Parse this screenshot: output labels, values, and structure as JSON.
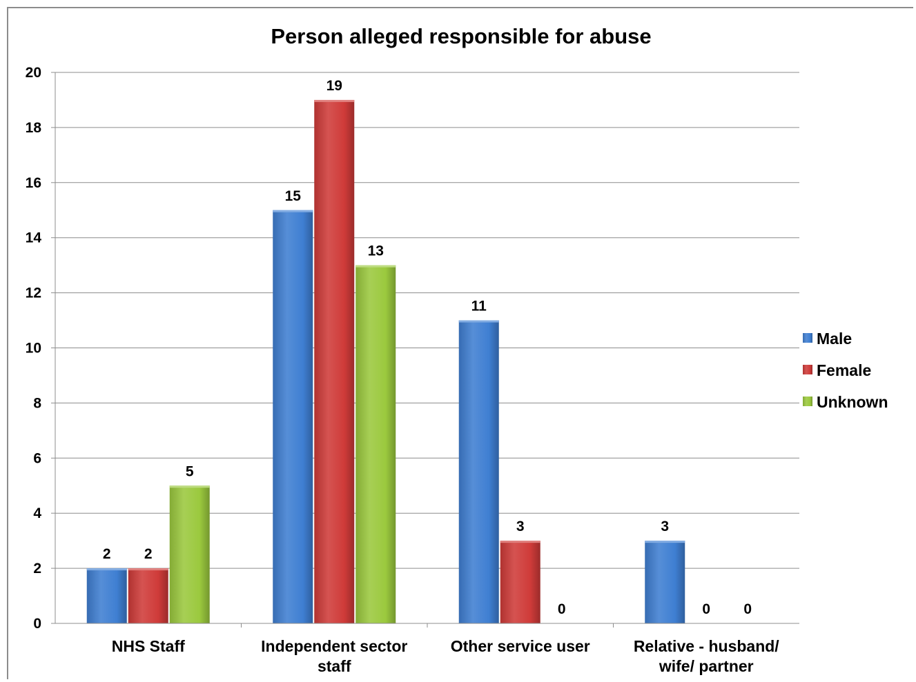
{
  "chart_data": {
    "type": "bar",
    "title": "Person alleged responsible for abuse",
    "categories": [
      [
        "NHS Staff"
      ],
      [
        "Independent sector",
        "staff"
      ],
      [
        "Other service user"
      ],
      [
        "Relative - husband/",
        "wife/ partner"
      ]
    ],
    "series": [
      {
        "name": "Male",
        "values": [
          2,
          15,
          11,
          3
        ],
        "color": "#3f7fd2"
      },
      {
        "name": "Female",
        "values": [
          2,
          19,
          3,
          0
        ],
        "color": "#cf3b39"
      },
      {
        "name": "Unknown",
        "values": [
          5,
          13,
          0,
          0
        ],
        "color": "#9bc93e"
      }
    ],
    "ylim": [
      0,
      20
    ],
    "yticks": [
      0,
      2,
      4,
      6,
      8,
      10,
      12,
      14,
      16,
      18,
      20
    ],
    "grid": true,
    "legend_position": "right",
    "xlabel": "",
    "ylabel": ""
  }
}
